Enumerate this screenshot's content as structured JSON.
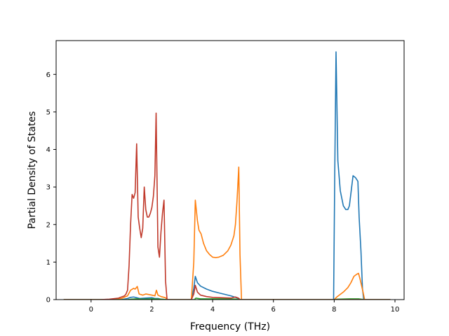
{
  "chart_data": {
    "type": "line",
    "title": "",
    "xlabel": "Frequency (THz)",
    "ylabel": "Partial Density of States",
    "xlim": [
      -1.15,
      10.3
    ],
    "ylim": [
      0,
      6.9
    ],
    "xticks": [
      0,
      2,
      4,
      6,
      8,
      10
    ],
    "yticks": [
      0,
      1,
      2,
      3,
      4,
      5,
      6
    ],
    "grid": false,
    "legend": "none",
    "series": [
      {
        "color": "#1f77b4",
        "points": [
          [
            -0.9,
            0
          ],
          [
            1.0,
            0
          ],
          [
            1.2,
            0.03
          ],
          [
            1.3,
            0.06
          ],
          [
            1.4,
            0.07
          ],
          [
            1.5,
            0.05
          ],
          [
            1.6,
            0.03
          ],
          [
            1.8,
            0.04
          ],
          [
            2.0,
            0.05
          ],
          [
            2.1,
            0.03
          ],
          [
            2.2,
            0.03
          ],
          [
            2.3,
            0.01
          ],
          [
            2.5,
            0
          ],
          [
            3.3,
            0
          ],
          [
            3.38,
            0.3
          ],
          [
            3.43,
            0.62
          ],
          [
            3.5,
            0.45
          ],
          [
            3.6,
            0.36
          ],
          [
            3.8,
            0.28
          ],
          [
            4.0,
            0.22
          ],
          [
            4.2,
            0.18
          ],
          [
            4.4,
            0.14
          ],
          [
            4.6,
            0.1
          ],
          [
            4.75,
            0.06
          ],
          [
            4.85,
            0.03
          ],
          [
            4.9,
            0
          ],
          [
            7.98,
            0
          ],
          [
            8.02,
            3.5
          ],
          [
            8.06,
            6.6
          ],
          [
            8.12,
            3.7
          ],
          [
            8.2,
            2.9
          ],
          [
            8.3,
            2.5
          ],
          [
            8.38,
            2.4
          ],
          [
            8.45,
            2.4
          ],
          [
            8.5,
            2.5
          ],
          [
            8.56,
            2.9
          ],
          [
            8.62,
            3.3
          ],
          [
            8.7,
            3.25
          ],
          [
            8.78,
            3.15
          ],
          [
            8.82,
            2.2
          ],
          [
            8.88,
            1.3
          ],
          [
            8.93,
            0.3
          ],
          [
            8.97,
            0
          ],
          [
            9.85,
            0
          ]
        ]
      },
      {
        "color": "#ff7f0e",
        "points": [
          [
            -0.9,
            0
          ],
          [
            0.6,
            0
          ],
          [
            1.0,
            0.03
          ],
          [
            1.2,
            0.1
          ],
          [
            1.3,
            0.25
          ],
          [
            1.4,
            0.3
          ],
          [
            1.45,
            0.28
          ],
          [
            1.52,
            0.35
          ],
          [
            1.58,
            0.15
          ],
          [
            1.7,
            0.12
          ],
          [
            1.8,
            0.15
          ],
          [
            2.0,
            0.12
          ],
          [
            2.1,
            0.1
          ],
          [
            2.15,
            0.25
          ],
          [
            2.2,
            0.12
          ],
          [
            2.3,
            0.08
          ],
          [
            2.45,
            0.05
          ],
          [
            2.5,
            0
          ],
          [
            3.3,
            0
          ],
          [
            3.38,
            1.0
          ],
          [
            3.43,
            2.65
          ],
          [
            3.5,
            2.1
          ],
          [
            3.55,
            1.85
          ],
          [
            3.62,
            1.75
          ],
          [
            3.7,
            1.5
          ],
          [
            3.8,
            1.3
          ],
          [
            3.9,
            1.2
          ],
          [
            4.0,
            1.13
          ],
          [
            4.1,
            1.12
          ],
          [
            4.2,
            1.13
          ],
          [
            4.35,
            1.18
          ],
          [
            4.5,
            1.3
          ],
          [
            4.6,
            1.45
          ],
          [
            4.7,
            1.7
          ],
          [
            4.75,
            2.0
          ],
          [
            4.8,
            2.6
          ],
          [
            4.86,
            3.53
          ],
          [
            4.9,
            1.2
          ],
          [
            4.95,
            0
          ],
          [
            8.0,
            0
          ],
          [
            8.1,
            0.08
          ],
          [
            8.3,
            0.2
          ],
          [
            8.45,
            0.32
          ],
          [
            8.55,
            0.45
          ],
          [
            8.65,
            0.62
          ],
          [
            8.75,
            0.68
          ],
          [
            8.8,
            0.7
          ],
          [
            8.85,
            0.55
          ],
          [
            8.95,
            0.2
          ],
          [
            9.0,
            0
          ],
          [
            9.85,
            0
          ]
        ]
      },
      {
        "color": "#2ca02c",
        "points": [
          [
            -0.9,
            0
          ],
          [
            1.2,
            0
          ],
          [
            1.3,
            0.01
          ],
          [
            1.5,
            0.02
          ],
          [
            1.7,
            0.01
          ],
          [
            2.0,
            0.02
          ],
          [
            2.3,
            0.01
          ],
          [
            2.5,
            0
          ],
          [
            3.4,
            0
          ],
          [
            3.45,
            0.04
          ],
          [
            3.6,
            0.02
          ],
          [
            4.0,
            0.02
          ],
          [
            4.5,
            0.02
          ],
          [
            4.8,
            0.01
          ],
          [
            4.95,
            0
          ],
          [
            8.0,
            0
          ],
          [
            8.1,
            0.01
          ],
          [
            8.5,
            0.02
          ],
          [
            8.8,
            0.02
          ],
          [
            9.0,
            0
          ],
          [
            9.85,
            0
          ]
        ]
      },
      {
        "color": "#c0392b",
        "points": [
          [
            -0.9,
            0
          ],
          [
            0.3,
            0
          ],
          [
            0.6,
            0.01
          ],
          [
            0.9,
            0.04
          ],
          [
            1.1,
            0.1
          ],
          [
            1.15,
            0.15
          ],
          [
            1.2,
            0.25
          ],
          [
            1.25,
            0.9
          ],
          [
            1.3,
            2.0
          ],
          [
            1.35,
            2.8
          ],
          [
            1.4,
            2.7
          ],
          [
            1.45,
            2.85
          ],
          [
            1.5,
            4.15
          ],
          [
            1.55,
            2.2
          ],
          [
            1.6,
            1.9
          ],
          [
            1.65,
            1.65
          ],
          [
            1.7,
            1.9
          ],
          [
            1.75,
            3.0
          ],
          [
            1.8,
            2.4
          ],
          [
            1.85,
            2.2
          ],
          [
            1.9,
            2.2
          ],
          [
            1.95,
            2.3
          ],
          [
            2.0,
            2.45
          ],
          [
            2.05,
            2.75
          ],
          [
            2.1,
            3.3
          ],
          [
            2.14,
            4.97
          ],
          [
            2.2,
            1.4
          ],
          [
            2.25,
            1.13
          ],
          [
            2.3,
            1.8
          ],
          [
            2.35,
            2.3
          ],
          [
            2.4,
            2.65
          ],
          [
            2.45,
            0.5
          ],
          [
            2.5,
            0
          ],
          [
            3.3,
            0
          ],
          [
            3.38,
            0.15
          ],
          [
            3.43,
            0.38
          ],
          [
            3.5,
            0.2
          ],
          [
            3.6,
            0.12
          ],
          [
            3.8,
            0.08
          ],
          [
            4.0,
            0.06
          ],
          [
            4.3,
            0.05
          ],
          [
            4.6,
            0.04
          ],
          [
            4.75,
            0.07
          ],
          [
            4.85,
            0.04
          ],
          [
            4.9,
            0
          ],
          [
            9.85,
            0
          ]
        ]
      }
    ]
  }
}
